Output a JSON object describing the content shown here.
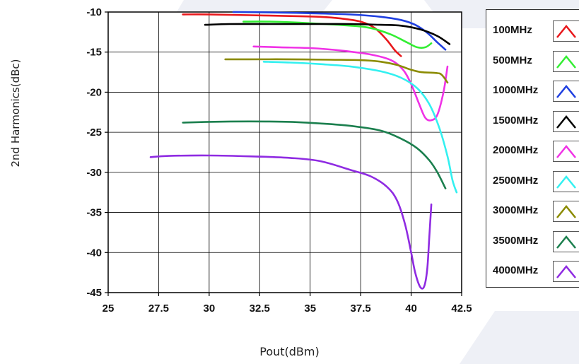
{
  "chart_data": {
    "type": "line",
    "title": "",
    "xlabel": "Pout(dBm)",
    "ylabel": "2nd Harmonics(dBc)",
    "xlim": [
      25,
      42.5
    ],
    "ylim": [
      -45,
      -10
    ],
    "x_ticks": [
      "25",
      "27.5",
      "30",
      "32.5",
      "35",
      "37.5",
      "40",
      "42.5"
    ],
    "y_ticks": [
      "-10",
      "-15",
      "-20",
      "-25",
      "-30",
      "-35",
      "-40",
      "-45"
    ],
    "grid": true,
    "legend_position": "right",
    "series": [
      {
        "name": "100MHz",
        "color": "#e8171b",
        "points": [
          [
            28.7,
            -10.3
          ],
          [
            30,
            -10.3
          ],
          [
            32,
            -10.4
          ],
          [
            34,
            -10.5
          ],
          [
            35.5,
            -10.6
          ],
          [
            36.5,
            -10.8
          ],
          [
            37.5,
            -11.2
          ],
          [
            38.2,
            -12.0
          ],
          [
            38.8,
            -13.5
          ],
          [
            39.2,
            -14.8
          ],
          [
            39.5,
            -15.5
          ]
        ]
      },
      {
        "name": "500MHz",
        "color": "#33ee33",
        "points": [
          [
            31.7,
            -11.2
          ],
          [
            33,
            -11.2
          ],
          [
            35,
            -11.4
          ],
          [
            37,
            -11.7
          ],
          [
            38,
            -12.0
          ],
          [
            39,
            -12.8
          ],
          [
            39.8,
            -13.8
          ],
          [
            40.3,
            -14.4
          ],
          [
            40.7,
            -14.4
          ],
          [
            41,
            -13.9
          ]
        ]
      },
      {
        "name": "1000MHz",
        "color": "#1f3fe0",
        "points": [
          [
            31.2,
            -10.0
          ],
          [
            33,
            -10.05
          ],
          [
            35,
            -10.15
          ],
          [
            37,
            -10.3
          ],
          [
            38.5,
            -10.6
          ],
          [
            39.5,
            -11.0
          ],
          [
            40.2,
            -11.6
          ],
          [
            40.8,
            -12.6
          ],
          [
            41.3,
            -13.8
          ],
          [
            41.7,
            -14.7
          ]
        ]
      },
      {
        "name": "1500MHz",
        "color": "#000000",
        "points": [
          [
            29.8,
            -11.6
          ],
          [
            31,
            -11.5
          ],
          [
            33,
            -11.5
          ],
          [
            35,
            -11.5
          ],
          [
            37,
            -11.5
          ],
          [
            38.5,
            -11.6
          ],
          [
            39.5,
            -11.7
          ],
          [
            40.5,
            -12.2
          ],
          [
            41.3,
            -13.0
          ],
          [
            41.9,
            -14.0
          ]
        ]
      },
      {
        "name": "2000MHz",
        "color": "#f032e6",
        "points": [
          [
            32.2,
            -14.3
          ],
          [
            33.5,
            -14.4
          ],
          [
            35,
            -14.5
          ],
          [
            36.5,
            -14.8
          ],
          [
            38,
            -15.3
          ],
          [
            39,
            -16.0
          ],
          [
            39.6,
            -17.2
          ],
          [
            40,
            -19.0
          ],
          [
            40.4,
            -21.5
          ],
          [
            40.7,
            -23.2
          ],
          [
            41,
            -23.5
          ],
          [
            41.3,
            -22.8
          ],
          [
            41.6,
            -20.0
          ],
          [
            41.8,
            -16.8
          ]
        ]
      },
      {
        "name": "2500MHz",
        "color": "#33f0f0",
        "points": [
          [
            32.7,
            -16.2
          ],
          [
            34,
            -16.3
          ],
          [
            35.5,
            -16.5
          ],
          [
            37,
            -16.8
          ],
          [
            38.5,
            -17.4
          ],
          [
            39.5,
            -18.2
          ],
          [
            40.3,
            -19.5
          ],
          [
            40.9,
            -21.5
          ],
          [
            41.4,
            -24.5
          ],
          [
            41.8,
            -28.0
          ],
          [
            42.05,
            -31.0
          ],
          [
            42.25,
            -32.5
          ]
        ]
      },
      {
        "name": "3000MHz",
        "color": "#8b8b00",
        "points": [
          [
            30.8,
            -15.9
          ],
          [
            32,
            -15.9
          ],
          [
            34,
            -15.9
          ],
          [
            36,
            -15.95
          ],
          [
            37.5,
            -16.0
          ],
          [
            38.5,
            -16.2
          ],
          [
            39.3,
            -16.6
          ],
          [
            40,
            -17.2
          ],
          [
            40.5,
            -17.5
          ],
          [
            41.2,
            -17.6
          ],
          [
            41.5,
            -17.8
          ],
          [
            41.8,
            -18.8
          ]
        ]
      },
      {
        "name": "3500MHz",
        "color": "#1b7f4e",
        "points": [
          [
            28.7,
            -23.8
          ],
          [
            30,
            -23.7
          ],
          [
            32,
            -23.65
          ],
          [
            34,
            -23.7
          ],
          [
            35.5,
            -23.9
          ],
          [
            37,
            -24.2
          ],
          [
            38.5,
            -24.8
          ],
          [
            39.5,
            -25.8
          ],
          [
            40.3,
            -27.0
          ],
          [
            40.9,
            -28.5
          ],
          [
            41.3,
            -30.0
          ],
          [
            41.7,
            -32.0
          ]
        ]
      },
      {
        "name": "4000MHz",
        "color": "#8f2be2",
        "points": [
          [
            27.1,
            -28.1
          ],
          [
            28,
            -27.95
          ],
          [
            30,
            -27.9
          ],
          [
            32,
            -28.0
          ],
          [
            34,
            -28.2
          ],
          [
            35.5,
            -28.6
          ],
          [
            37,
            -29.7
          ],
          [
            38,
            -30.5
          ],
          [
            38.8,
            -31.8
          ],
          [
            39.3,
            -33.5
          ],
          [
            39.7,
            -36.5
          ],
          [
            40,
            -40.0
          ],
          [
            40.2,
            -42.5
          ],
          [
            40.45,
            -44.3
          ],
          [
            40.65,
            -44.2
          ],
          [
            40.8,
            -42.0
          ],
          [
            40.9,
            -38.0
          ],
          [
            41,
            -34.0
          ]
        ]
      }
    ]
  }
}
